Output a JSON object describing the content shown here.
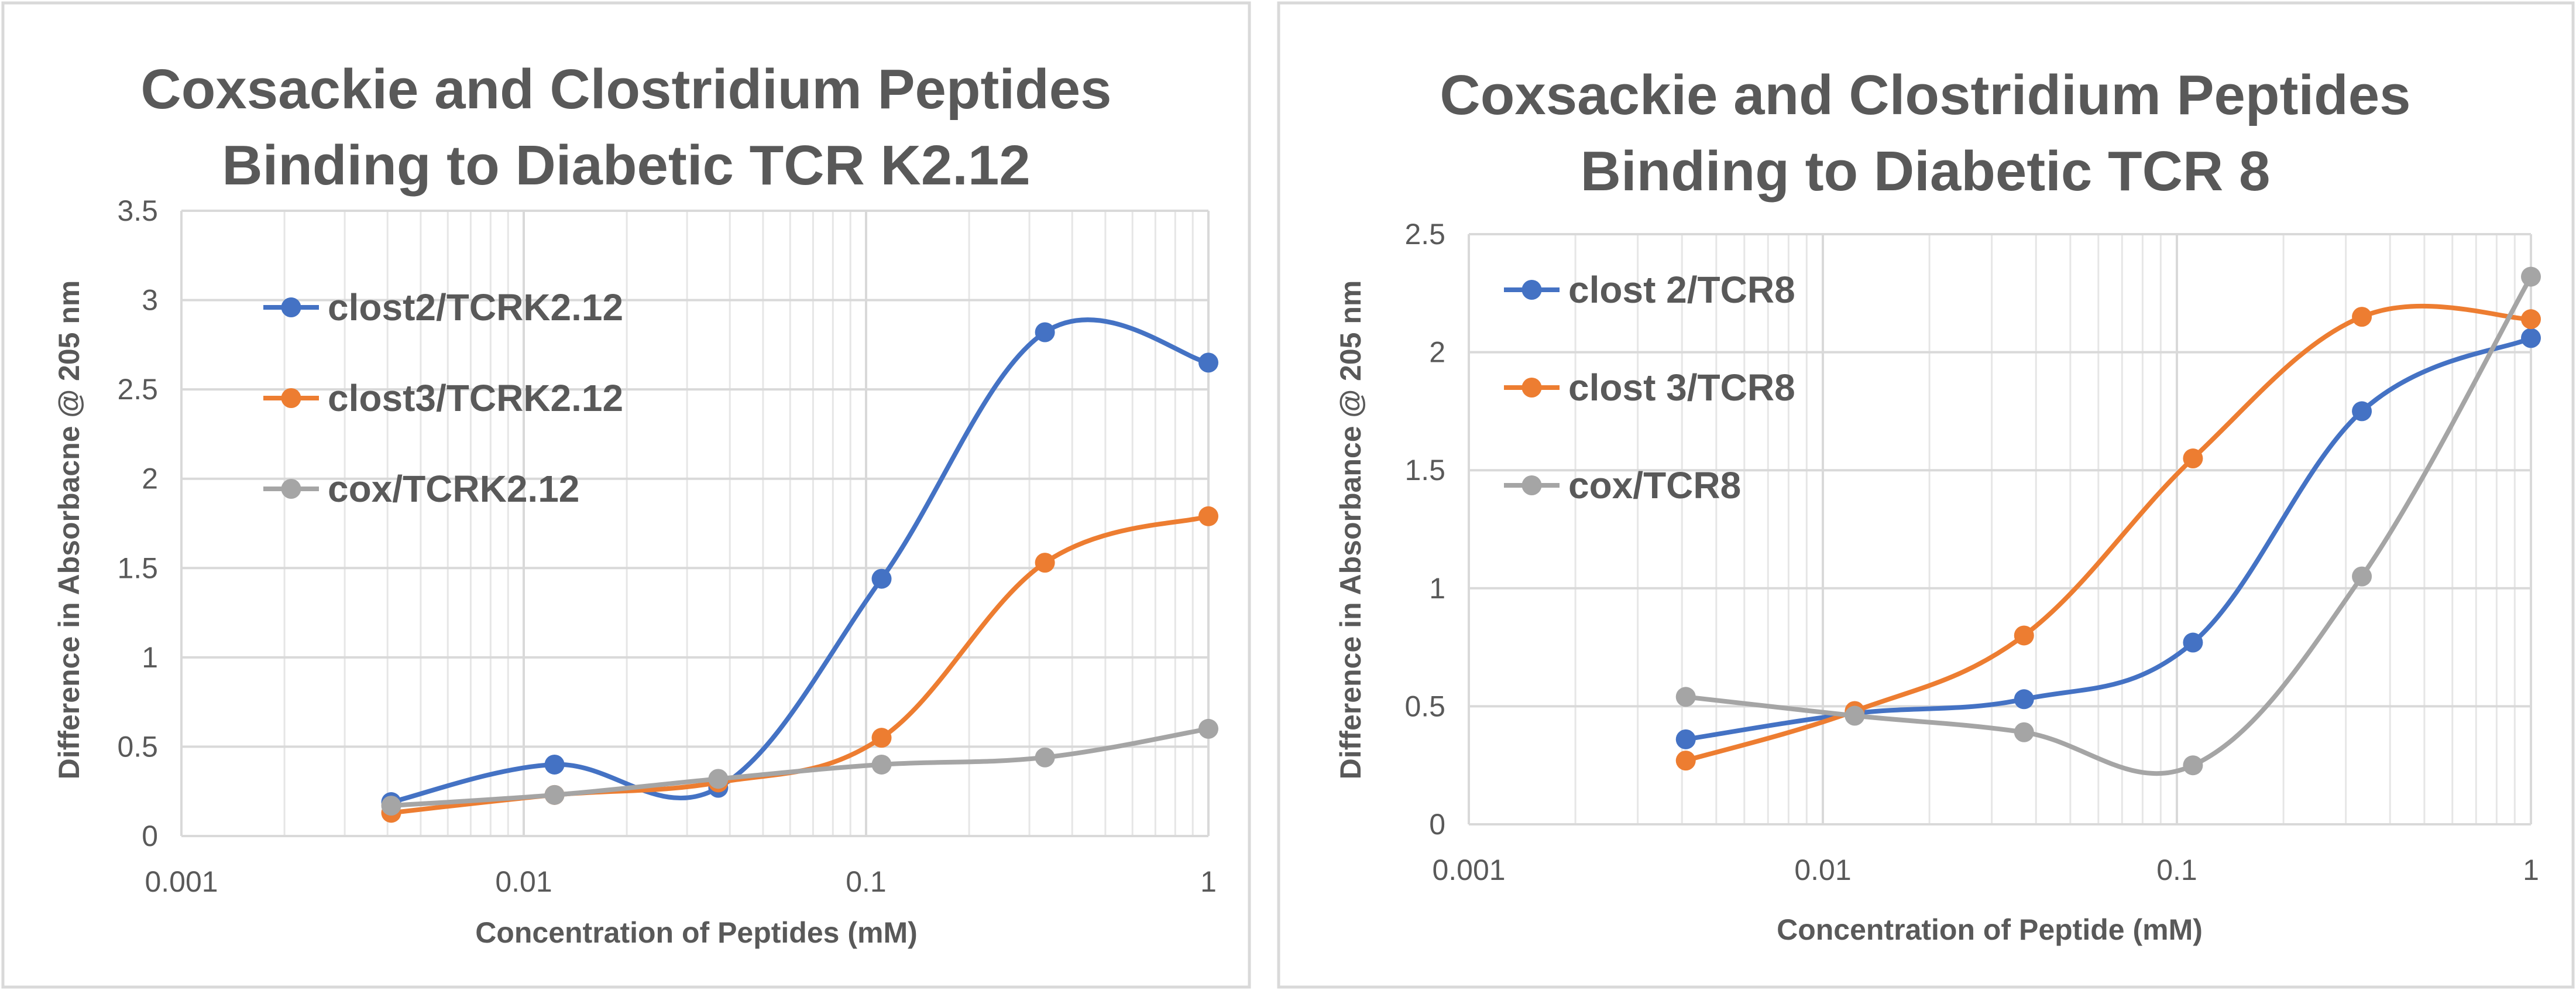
{
  "colors": {
    "clost2": "#4472C4",
    "clost3": "#ED7D31",
    "cox": "#A5A5A5"
  },
  "chart_data": [
    {
      "type": "line",
      "title_line1": "Coxsackie and Clostridium Peptides",
      "title_line2": "Binding to Diabetic TCR K2.12",
      "xlabel": "Concentration of Peptides (mM)",
      "ylabel": "Difference in Absorbacne @ 205 nm",
      "xscale": "log",
      "xlim": [
        0.001,
        1
      ],
      "ylim": [
        0,
        3.5
      ],
      "xticks": [
        0.001,
        0.01,
        0.1,
        1
      ],
      "xtick_labels": [
        "0.001",
        "0.01",
        "0.1",
        "1"
      ],
      "yticks": [
        0,
        0.5,
        1,
        1.5,
        2,
        2.5,
        3,
        3.5
      ],
      "ytick_labels": [
        "0",
        "0.5",
        "1",
        "1.5",
        "2",
        "2.5",
        "3",
        "3.5"
      ],
      "grid": true,
      "legend_position": "top-left",
      "x": [
        0.0041,
        0.0123,
        0.037,
        0.111,
        0.333,
        1
      ],
      "series": [
        {
          "name": "clost2/TCRK2.12",
          "color": "#4472C4",
          "values": [
            0.19,
            0.4,
            0.27,
            1.44,
            2.82,
            2.65
          ]
        },
        {
          "name": "clost3/TCRK2.12",
          "color": "#ED7D31",
          "values": [
            0.13,
            0.23,
            0.3,
            0.55,
            1.53,
            1.79
          ]
        },
        {
          "name": "cox/TCRK2.12",
          "color": "#A5A5A5",
          "values": [
            0.17,
            0.23,
            0.32,
            0.4,
            0.44,
            0.6
          ]
        }
      ]
    },
    {
      "type": "line",
      "title_line1": "Coxsackie and Clostridium Peptides",
      "title_line2": "Binding to Diabetic TCR 8",
      "xlabel": "Concentration of Peptide (mM)",
      "ylabel": "Difference in Absorbance @ 205 nm",
      "xscale": "log",
      "xlim": [
        0.001,
        1
      ],
      "ylim": [
        0,
        2.5
      ],
      "xticks": [
        0.001,
        0.01,
        0.1,
        1
      ],
      "xtick_labels": [
        "0.001",
        "0.01",
        "0.1",
        "1"
      ],
      "yticks": [
        0,
        0.5,
        1,
        1.5,
        2,
        2.5
      ],
      "ytick_labels": [
        "0",
        "0.5",
        "1",
        "1.5",
        "2",
        "2.5"
      ],
      "grid": true,
      "legend_position": "top-left",
      "x": [
        0.0041,
        0.0123,
        0.037,
        0.111,
        0.333,
        1
      ],
      "series": [
        {
          "name": "clost 2/TCR8",
          "color": "#4472C4",
          "values": [
            0.36,
            0.47,
            0.53,
            0.77,
            1.75,
            2.06
          ]
        },
        {
          "name": "clost 3/TCR8",
          "color": "#ED7D31",
          "values": [
            0.27,
            0.48,
            0.8,
            1.55,
            2.15,
            2.14
          ]
        },
        {
          "name": "cox/TCR8",
          "color": "#A5A5A5",
          "values": [
            0.54,
            0.46,
            0.39,
            0.25,
            1.05,
            2.32
          ]
        }
      ]
    }
  ]
}
